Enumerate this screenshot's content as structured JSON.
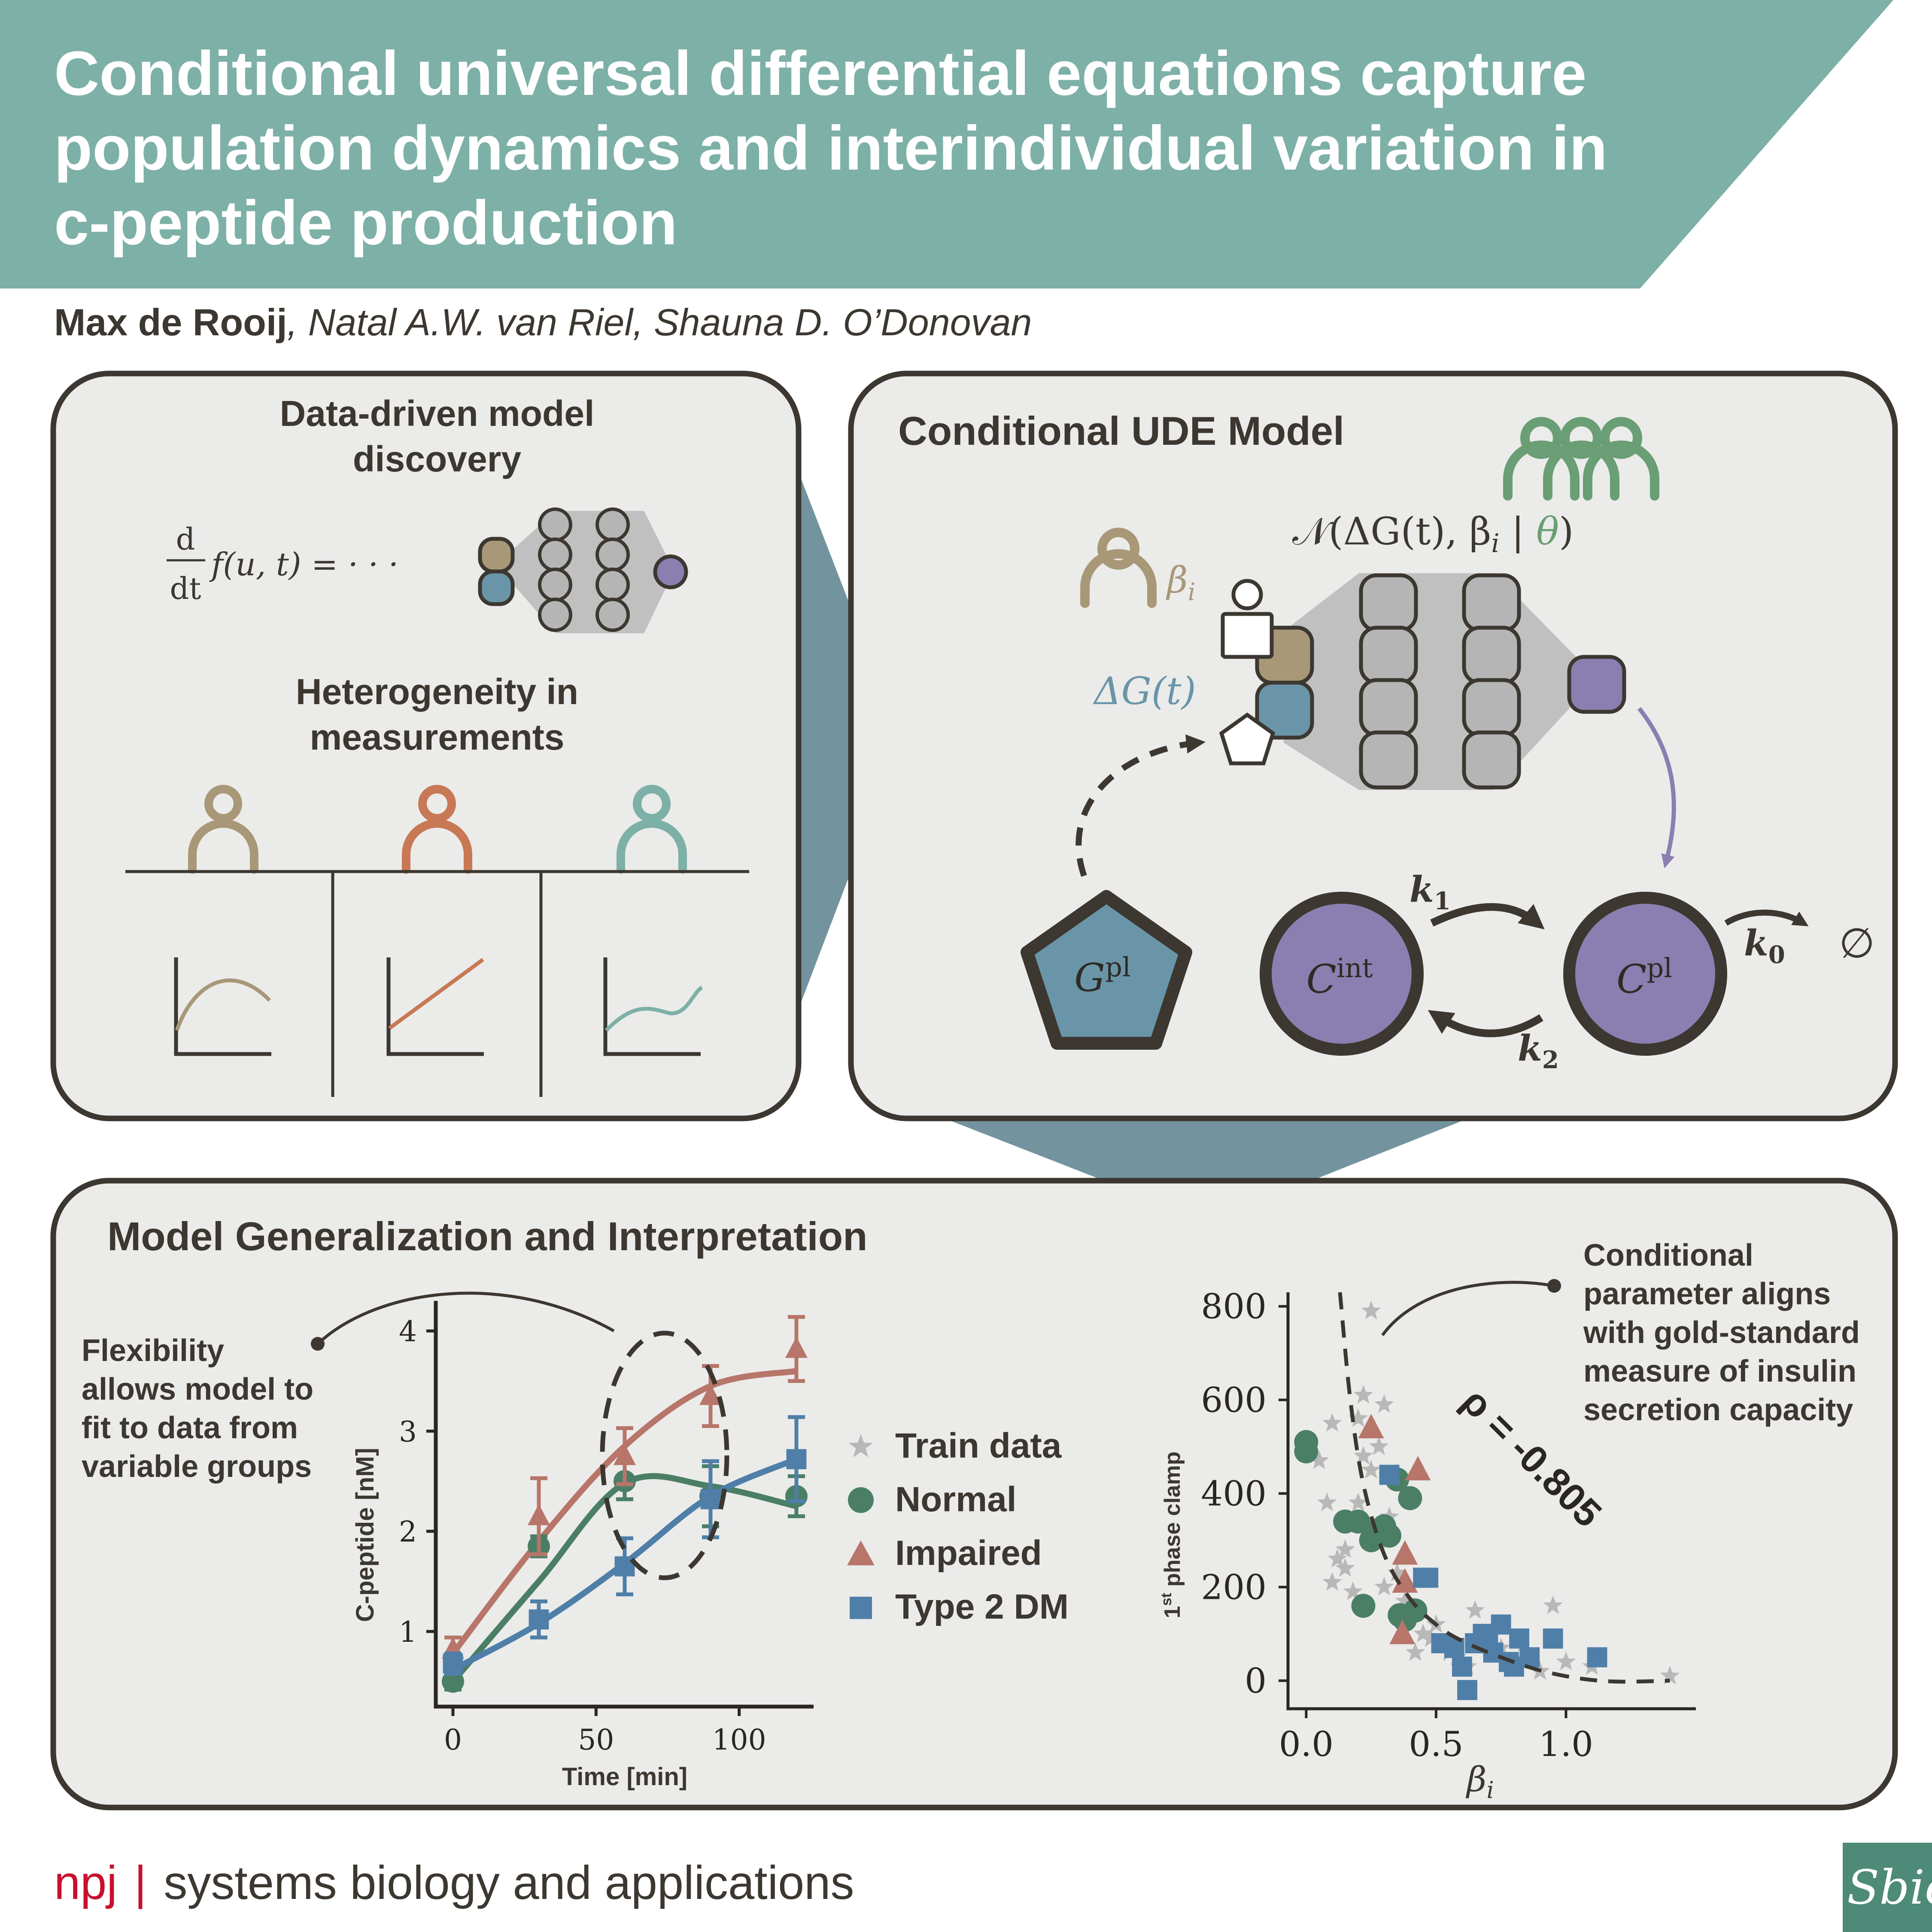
{
  "header": {
    "title": "Conditional universal differential equations capture population dynamics and interindividual variation in c-peptide production"
  },
  "authors": {
    "lead": "Max de Rooij",
    "rest": ", Natal A.W. van Riel, Shauna D. O’Donovan"
  },
  "panel_discovery": {
    "heading_line1": "Data-driven model",
    "heading_line2": "discovery",
    "equation": "d/dt f(u,t) = ···",
    "eq_d": "d",
    "eq_dt": "dt",
    "eq_rhs": "f(u, t) = · · ·",
    "heterogeneity_line1": "Heterogeneity in",
    "heterogeneity_line2": "measurements"
  },
  "panel_ude": {
    "heading": "Conditional UDE Model",
    "nn_label": "𝒩(ΔG(t), βᵢ | θ)",
    "nn_prefix": "𝒩(ΔG(t), β",
    "nn_sub": "i",
    "nn_bar": " | ",
    "nn_theta": "θ",
    "nn_close": ")",
    "beta_label": "β",
    "beta_sub": "i",
    "delta_g_label": "ΔG(t)",
    "g_pl": "G",
    "g_pl_sup": "pl",
    "c_int": "C",
    "c_int_sup": "int",
    "c_pl": "C",
    "c_pl_sup": "pl",
    "k1": "k",
    "k1_sub": "1",
    "k2": "k",
    "k2_sub": "2",
    "k0": "k",
    "k0_sub": "0",
    "sink": "∅"
  },
  "panel_generalization": {
    "heading": "Model Generalization and Interpretation",
    "flex_line1": "Flexibility",
    "flex_line2": "allows model to",
    "flex_line3": "fit to data from",
    "flex_line4": "variable groups",
    "cond_line1": "Conditional",
    "cond_line2": "parameter aligns",
    "cond_line3": "with gold-standard",
    "cond_line4": "measure of insulin",
    "cond_line5": "secretion capacity",
    "legend": {
      "train": "Train data",
      "normal": "Normal",
      "impaired": "Impaired",
      "t2dm": "Type 2 DM"
    },
    "rho": "ρ = -0.805"
  },
  "chart_data": [
    {
      "type": "line",
      "xlabel": "Time [min]",
      "ylabel": "C-peptide [nM]",
      "xlim": [
        -6,
        126
      ],
      "ylim": [
        0.25,
        4.3
      ],
      "xticks": [
        "0",
        "50",
        "100"
      ],
      "yticks": [
        "1",
        "2",
        "3",
        "4"
      ],
      "x": [
        0,
        30,
        60,
        90,
        120
      ],
      "series": [
        {
          "name": "Normal",
          "color": "#4a7f66",
          "marker": "circle",
          "values": [
            0.5,
            1.85,
            2.5,
            2.35,
            2.35
          ],
          "errors": [
            0.08,
            0.1,
            0.18,
            0.3,
            0.2
          ]
        },
        {
          "name": "Impaired",
          "color": "#b8756a",
          "marker": "triangle",
          "values": [
            0.82,
            2.15,
            2.75,
            3.35,
            3.82
          ],
          "errors": [
            0.12,
            0.38,
            0.28,
            0.3,
            0.32
          ]
        },
        {
          "name": "Type 2 DM",
          "color": "#4f7fa8",
          "marker": "square",
          "values": [
            0.68,
            1.12,
            1.65,
            2.32,
            2.72
          ],
          "errors": [
            0.1,
            0.18,
            0.28,
            0.38,
            0.42
          ]
        }
      ],
      "fits": [
        {
          "name": "Normal",
          "color": "#4a7f66",
          "values": [
            0.5,
            1.5,
            2.48,
            2.45,
            2.25
          ]
        },
        {
          "name": "Impaired",
          "color": "#b8756a",
          "values": [
            0.78,
            1.9,
            2.85,
            3.45,
            3.6
          ]
        },
        {
          "name": "Type 2 DM",
          "color": "#4f7fa8",
          "values": [
            0.62,
            1.08,
            1.68,
            2.35,
            2.72
          ]
        }
      ]
    },
    {
      "type": "scatter",
      "xlabel": "βᵢ",
      "ylabel": "1st phase clamp",
      "ylabel_main": "1",
      "ylabel_sup": "st",
      "ylabel_rest": " phase clamp",
      "xlim": [
        -0.07,
        1.5
      ],
      "ylim": [
        -60,
        830
      ],
      "xticks": [
        "0.0",
        "0.5",
        "1.0"
      ],
      "yticks": [
        "0",
        "200",
        "400",
        "600",
        "800"
      ],
      "fit_curve": {
        "x": [
          0.13,
          0.17,
          0.22,
          0.3,
          0.4,
          0.5,
          0.6,
          0.75,
          0.9,
          1.05,
          1.2,
          1.4
        ],
        "y": [
          830,
          600,
          420,
          270,
          175,
          120,
          85,
          50,
          22,
          5,
          -2,
          0
        ]
      },
      "series": [
        {
          "name": "Train data",
          "color": "#b8b8b8",
          "marker": "star",
          "x": [
            0.25,
            0.22,
            0.3,
            0.28,
            0.1,
            0.08,
            0.05,
            0.2,
            0.15,
            0.35,
            0.4,
            0.12,
            0.18,
            0.22,
            0.32,
            0.45,
            0.55,
            0.6,
            0.7,
            0.8,
            0.9,
            0.65,
            0.5,
            0.42,
            0.38,
            0.28,
            0.15,
            0.1,
            0.3,
            0.48,
            0.58,
            0.75,
            0.85,
            1.0,
            1.1,
            1.4,
            0.2,
            0.25,
            0.62,
            0.95
          ],
          "y": [
            790,
            610,
            590,
            500,
            550,
            380,
            470,
            380,
            280,
            230,
            140,
            260,
            190,
            480,
            350,
            100,
            60,
            40,
            80,
            30,
            20,
            150,
            120,
            60,
            170,
            300,
            240,
            210,
            200,
            90,
            50,
            70,
            60,
            40,
            30,
            10,
            560,
            450,
            30,
            160
          ]
        },
        {
          "name": "Normal",
          "color": "#4a7f66",
          "marker": "circle",
          "x": [
            0.0,
            0.0,
            0.15,
            0.2,
            0.25,
            0.3,
            0.35,
            0.4,
            0.22,
            0.32,
            0.36,
            0.42,
            0.27,
            0.38
          ],
          "y": [
            510,
            490,
            340,
            340,
            300,
            330,
            430,
            390,
            160,
            310,
            140,
            150,
            320,
            130
          ]
        },
        {
          "name": "Impaired",
          "color": "#b8756a",
          "marker": "triangle",
          "x": [
            0.25,
            0.43,
            0.38,
            0.38,
            0.37
          ],
          "y": [
            540,
            450,
            270,
            210,
            100
          ]
        },
        {
          "name": "Type 2 DM",
          "color": "#4f7fa8",
          "marker": "square",
          "x": [
            0.32,
            0.45,
            0.47,
            0.52,
            0.57,
            0.62,
            0.65,
            0.68,
            0.72,
            0.75,
            0.78,
            0.82,
            0.86,
            0.95,
            1.12,
            0.6,
            0.7,
            0.8
          ],
          "y": [
            440,
            220,
            220,
            80,
            70,
            -20,
            80,
            100,
            60,
            120,
            40,
            90,
            50,
            90,
            50,
            30,
            80,
            30
          ]
        }
      ]
    }
  ]
}
